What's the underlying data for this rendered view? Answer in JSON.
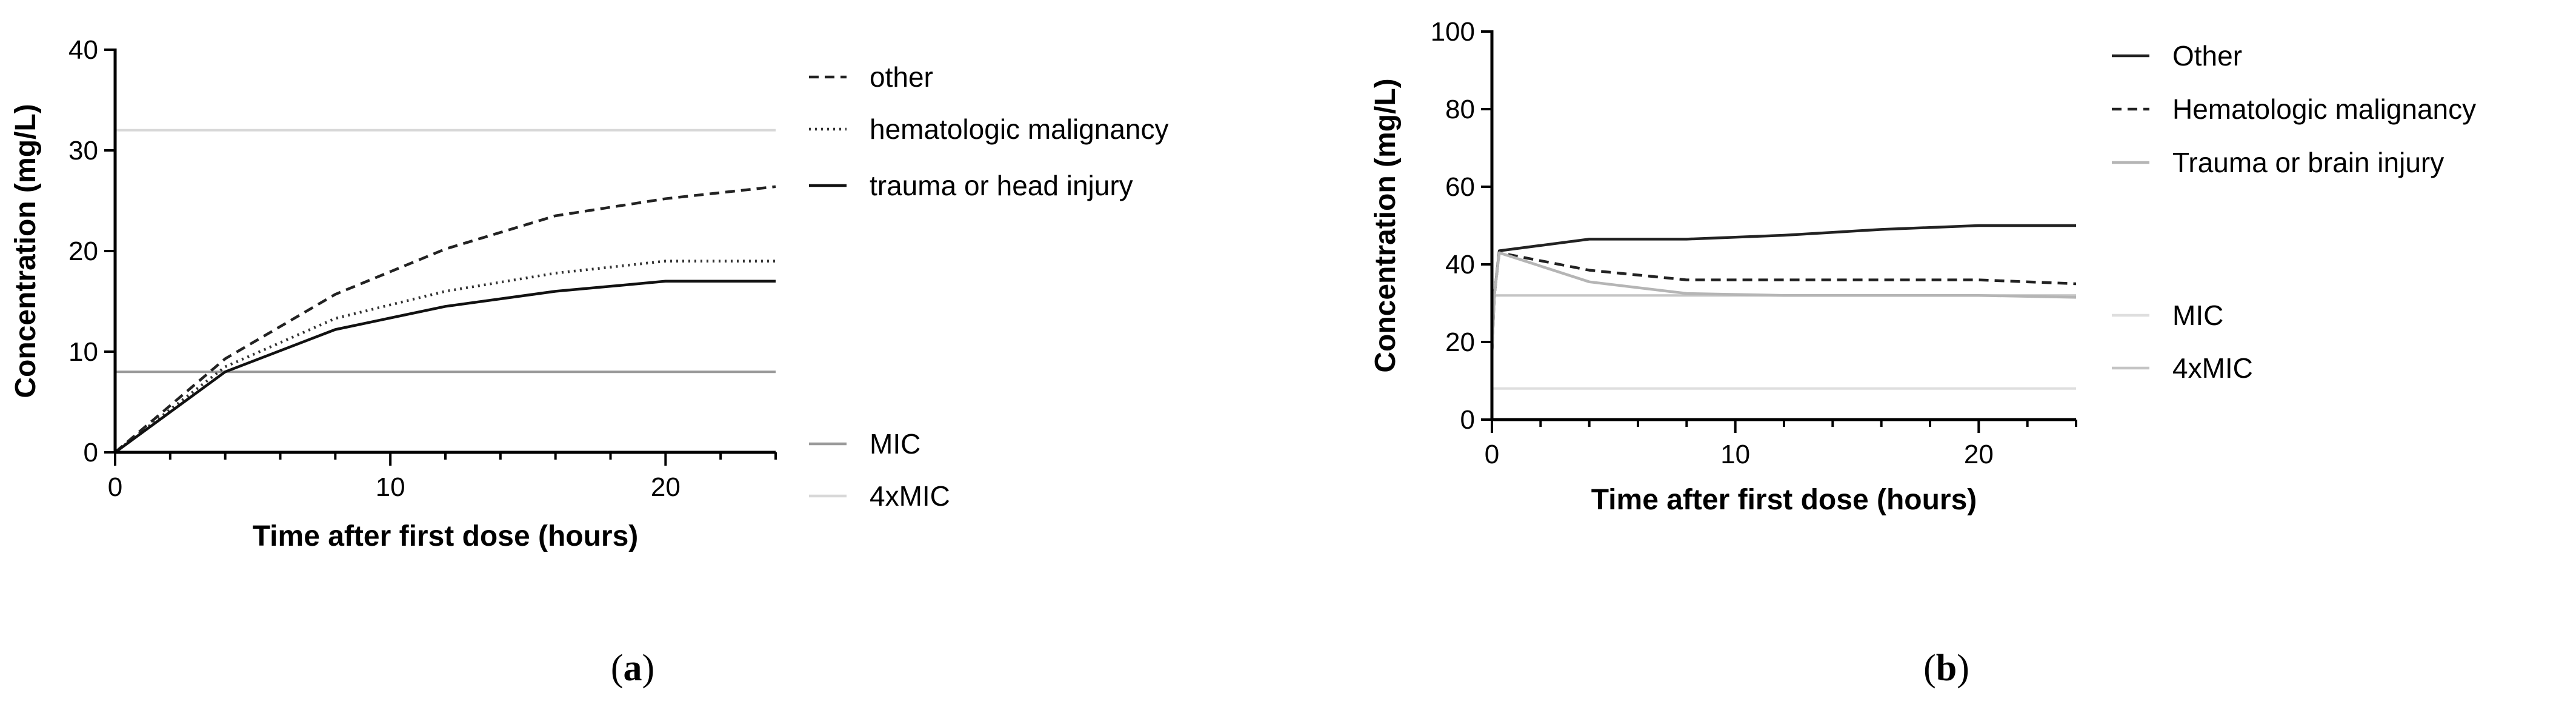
{
  "chart_data": [
    {
      "type": "line",
      "panel_label": "a",
      "xlabel": "Time after first dose (hours)",
      "ylabel": "Concentration (mg/L)",
      "xlim": [
        0,
        24
      ],
      "ylim": [
        0,
        40
      ],
      "x_ticks": [
        0,
        10,
        20
      ],
      "y_ticks": [
        0,
        10,
        20,
        30,
        40
      ],
      "grid": false,
      "legend_position": "right",
      "series": [
        {
          "name": "other",
          "style": "dashed",
          "color": "#222222",
          "x": [
            0,
            4,
            8,
            12,
            16,
            20,
            24
          ],
          "y": [
            0,
            9.3,
            15.7,
            20.2,
            23.5,
            25.2,
            26.4
          ]
        },
        {
          "name": "hematologic malignancy",
          "style": "dotted",
          "color": "#333333",
          "x": [
            0,
            4,
            8,
            12,
            16,
            20,
            24
          ],
          "y": [
            0,
            8.5,
            13.3,
            16.0,
            17.8,
            19.0,
            19.0
          ]
        },
        {
          "name": "trauma or head injury",
          "style": "solid",
          "color": "#111111",
          "x": [
            0,
            4,
            8,
            12,
            16,
            20,
            24
          ],
          "y": [
            0,
            8.0,
            12.2,
            14.5,
            16.0,
            17.0,
            17.0
          ]
        }
      ],
      "reference_lines": [
        {
          "name": "MIC",
          "value": 8,
          "color": "#9a9a9a"
        },
        {
          "name": "4xMIC",
          "value": 32,
          "color": "#d8d8d8"
        }
      ]
    },
    {
      "type": "line",
      "panel_label": "b",
      "xlabel": "Time after first dose (hours)",
      "ylabel": "Concentration (mg/L)",
      "xlim": [
        0,
        24
      ],
      "ylim": [
        0,
        100
      ],
      "x_ticks": [
        0,
        10,
        20
      ],
      "y_ticks": [
        0,
        20,
        40,
        60,
        80,
        100
      ],
      "grid": false,
      "legend_position": "right",
      "series": [
        {
          "name": "Other",
          "style": "solid",
          "color": "#222222",
          "x": [
            0,
            0.1,
            0.3,
            4,
            8,
            12,
            16,
            20,
            24
          ],
          "y": [
            17,
            32,
            43.5,
            46.5,
            46.5,
            47.5,
            49,
            50,
            50
          ]
        },
        {
          "name": "Hematologic malignancy",
          "style": "dashed",
          "color": "#222222",
          "x": [
            0,
            0.1,
            0.3,
            4,
            8,
            12,
            16,
            20,
            24
          ],
          "y": [
            17,
            32,
            43,
            38.5,
            36,
            36,
            36,
            36,
            35
          ]
        },
        {
          "name": "Trauma or brain injury",
          "style": "solid",
          "color": "#b5b5b5",
          "x": [
            0,
            0.1,
            0.3,
            4,
            8,
            12,
            16,
            20,
            24
          ],
          "y": [
            17,
            32,
            43,
            35.5,
            32.5,
            32,
            32,
            32,
            31.5
          ]
        }
      ],
      "reference_lines": [
        {
          "name": "MIC",
          "value": 8,
          "color": "#dedede"
        },
        {
          "name": "4xMIC",
          "value": 32,
          "color": "#c4c4c4"
        }
      ]
    }
  ],
  "captions": {
    "a": {
      "open": "(",
      "letter": "a",
      "close": ")"
    },
    "b": {
      "open": "(",
      "letter": "b",
      "close": ")"
    }
  }
}
